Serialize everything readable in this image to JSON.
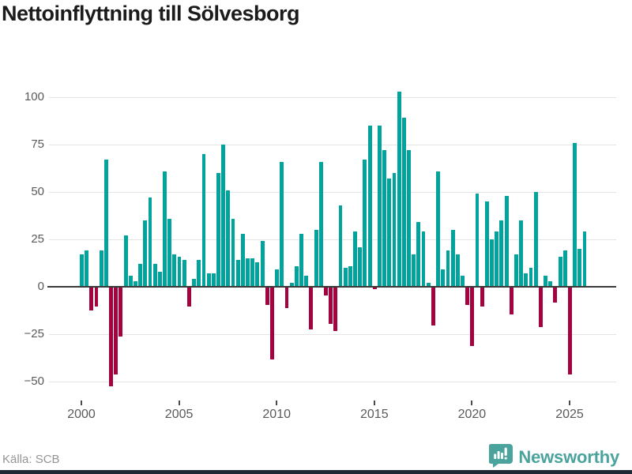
{
  "title": "Nettoinflyttning till Sölvesborg",
  "source": "Källa: SCB",
  "branding": {
    "name": "Newsworthy"
  },
  "colors": {
    "positive": "#00a49c",
    "negative": "#a30440",
    "grid": "#e4e4e4",
    "axis": "#3a3a3a",
    "brand": "#4aa39c",
    "footer_bar": "#1d2935"
  },
  "chart_data": {
    "type": "bar",
    "title": "Nettoinflyttning till Sölvesborg",
    "frequency": "quarterly",
    "x_start": "2000-Q1",
    "x_end": "2025-Q4",
    "values": [
      17,
      19,
      -12,
      -10,
      19,
      67,
      -52,
      -46,
      -26,
      27,
      6,
      3,
      12,
      35,
      47,
      12,
      8,
      61,
      36,
      17,
      16,
      14,
      -10,
      4,
      14,
      70,
      7,
      7,
      60,
      75,
      51,
      36,
      14,
      28,
      15,
      15,
      13,
      24,
      -9,
      -38,
      9,
      66,
      -11,
      2,
      11,
      28,
      6,
      -22,
      30,
      66,
      -4,
      -19,
      -23,
      43,
      10,
      11,
      29,
      21,
      67,
      85,
      -1,
      85,
      72,
      57,
      60,
      103,
      89,
      72,
      17,
      34,
      29,
      2,
      -20,
      61,
      9,
      19,
      30,
      17,
      6,
      -9,
      -31,
      49,
      -10,
      45,
      25,
      29,
      35,
      48,
      -14,
      17,
      35,
      7,
      10,
      50,
      -21,
      6,
      3,
      -8,
      16,
      19,
      -46,
      76,
      20,
      29
    ],
    "y_ticks": [
      100,
      75,
      50,
      25,
      0,
      -25,
      -50
    ],
    "y_tick_labels": [
      "100",
      "75",
      "50",
      "25",
      "0",
      "−25",
      "−50"
    ],
    "x_tick_years": [
      2000,
      2005,
      2010,
      2015,
      2020,
      2025
    ],
    "ylim": [
      -57,
      110
    ],
    "grid": true,
    "legend": "none",
    "color_rule": "teal for positive values, burgundy for negative values"
  }
}
